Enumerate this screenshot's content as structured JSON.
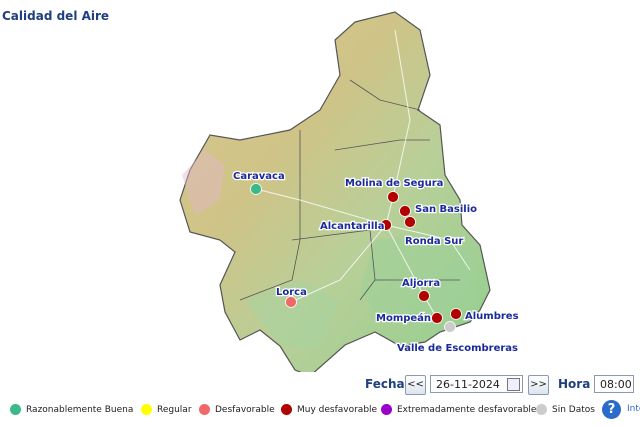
{
  "header": {
    "title": "Calidad del Aire"
  },
  "stations": [
    {
      "name": "Caravaca",
      "color": "#3cb98a"
    },
    {
      "name": "Molina de Segura",
      "color": "#b00000"
    },
    {
      "name": "San Basilio",
      "color": "#b00000"
    },
    {
      "name": "Alcantarilla",
      "color": "#b00000"
    },
    {
      "name": "Ronda Sur",
      "color": "#b00000"
    },
    {
      "name": "Aljorra",
      "color": "#b00000"
    },
    {
      "name": "Lorca",
      "color": "#f06868"
    },
    {
      "name": "Mompeán",
      "color": "#b00000"
    },
    {
      "name": "Alumbres",
      "color": "#b00000"
    },
    {
      "name": "Valle de Escombreras",
      "color": "#cccccc"
    }
  ],
  "controls": {
    "date_label": "Fecha",
    "prev": "<<",
    "date": "26-11-2024",
    "next": ">>",
    "hour_label": "Hora",
    "hour": "08:00"
  },
  "legend": [
    {
      "label": "Razonablemente Buena",
      "color": "#3cb98a"
    },
    {
      "label": "Regular",
      "color": "#ffff00"
    },
    {
      "label": "Desfavorable",
      "color": "#f06868"
    },
    {
      "label": "Muy desfavorable",
      "color": "#b00000"
    },
    {
      "label": "Extremadamente desfavorable",
      "color": "#9900cc"
    },
    {
      "label": "Sin Datos",
      "color": "#cccccc"
    },
    {
      "label": "Inte",
      "color": "#2a6acb"
    }
  ],
  "help_icon": "?"
}
